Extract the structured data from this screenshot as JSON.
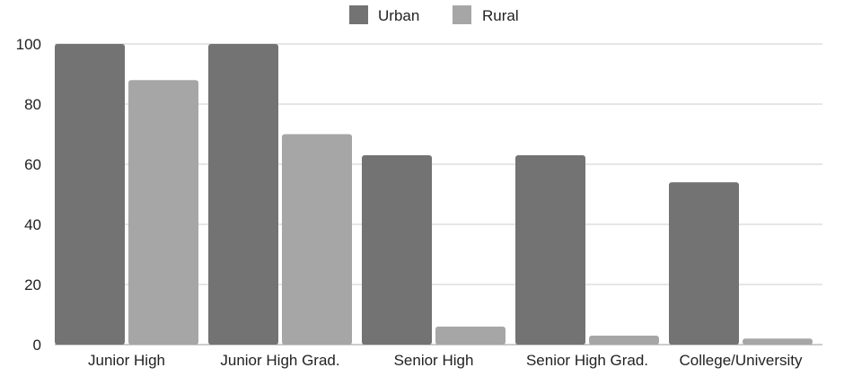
{
  "chart_data": {
    "type": "bar",
    "categories": [
      "Junior High",
      "Junior High Grad.",
      "Senior High",
      "Senior High Grad.",
      "College/University"
    ],
    "series": [
      {
        "name": "Urban",
        "color": "#737373",
        "values": [
          100,
          100,
          63,
          63,
          54
        ]
      },
      {
        "name": "Rural",
        "color": "#a6a6a6",
        "values": [
          88,
          70,
          6,
          3,
          2
        ]
      }
    ],
    "yticks": [
      0,
      20,
      40,
      60,
      80,
      100
    ],
    "ylim": [
      0,
      100
    ],
    "grid": true,
    "legend_position": "top-center",
    "title": "",
    "xlabel": "",
    "ylabel": ""
  }
}
